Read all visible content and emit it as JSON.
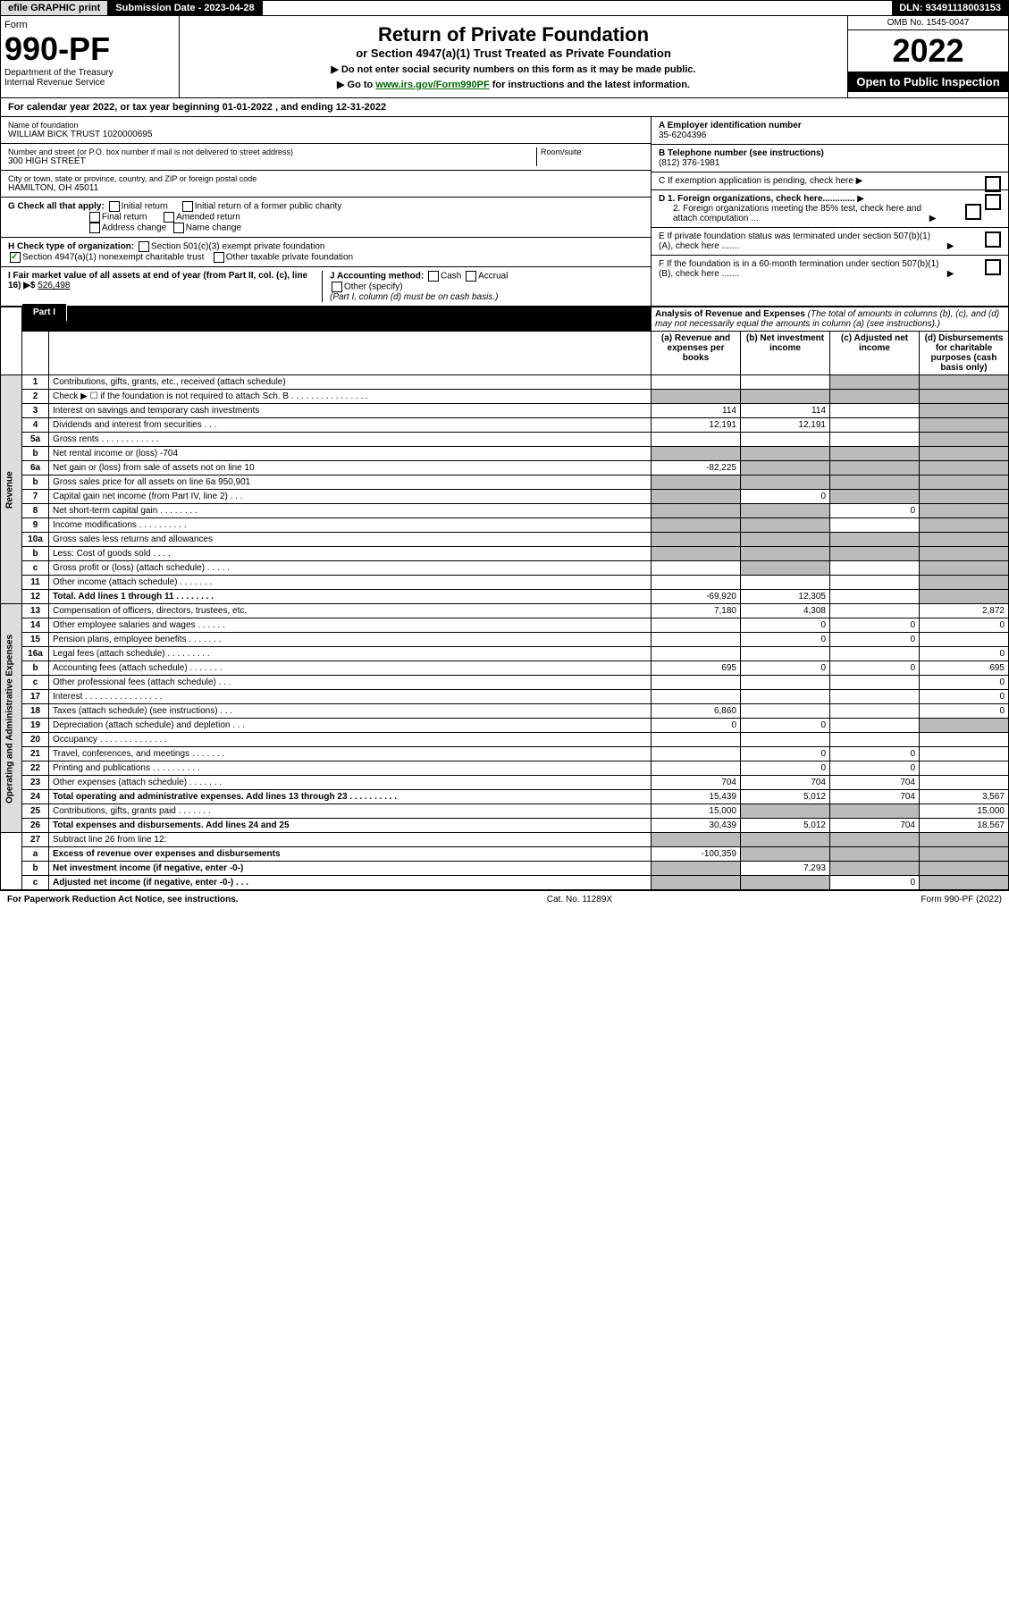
{
  "topbar": {
    "efile": "efile GRAPHIC print",
    "sub_date_label": "Submission Date - 2023-04-28",
    "dln": "DLN: 93491118003153"
  },
  "header": {
    "form_label": "Form",
    "form_no": "990-PF",
    "dept": "Department of the Treasury\nInternal Revenue Service",
    "title": "Return of Private Foundation",
    "subtitle": "or Section 4947(a)(1) Trust Treated as Private Foundation",
    "note1": "▶ Do not enter social security numbers on this form as it may be made public.",
    "note2_pre": "▶ Go to ",
    "note2_link": "www.irs.gov/Form990PF",
    "note2_post": " for instructions and the latest information.",
    "omb": "OMB No. 1545-0047",
    "tax_year": "2022",
    "open_pub": "Open to Public Inspection"
  },
  "cal_year": "For calendar year 2022, or tax year beginning 01-01-2022                                    , and ending 12-31-2022",
  "info": {
    "name_label": "Name of foundation",
    "name": "WILLIAM BICK TRUST 1020000695",
    "addr_label": "Number and street (or P.O. box number if mail is not delivered to street address)",
    "addr": "300 HIGH STREET",
    "room_label": "Room/suite",
    "city_label": "City or town, state or province, country, and ZIP or foreign postal code",
    "city": "HAMILTON, OH  45011",
    "ein_label": "A Employer identification number",
    "ein": "35-6204396",
    "phone_label": "B Telephone number (see instructions)",
    "phone": "(812) 376-1981",
    "c_label": "C If exemption application is pending, check here",
    "d1_label": "D 1. Foreign organizations, check here.............",
    "d2_label": "2. Foreign organizations meeting the 85% test, check here and attach computation ...",
    "e_label": "E  If private foundation status was terminated under section 507(b)(1)(A), check here .......",
    "f_label": "F  If the foundation is in a 60-month termination under section 507(b)(1)(B), check here .......",
    "g_label": "G Check all that apply:",
    "g_opts": [
      "Initial return",
      "Final return",
      "Address change",
      "Initial return of a former public charity",
      "Amended return",
      "Name change"
    ],
    "h_label": "H Check type of organization:",
    "h_opt1": "Section 501(c)(3) exempt private foundation",
    "h_opt2": "Section 4947(a)(1) nonexempt charitable trust",
    "h_opt3": "Other taxable private foundation",
    "i_label": "I Fair market value of all assets at end of year (from Part II, col. (c), line 16) ▶$",
    "i_val": "526,498",
    "j_label": "J Accounting method:",
    "j_opts": [
      "Cash",
      "Accrual"
    ],
    "j_other": "Other (specify)",
    "j_note": "(Part I, column (d) must be on cash basis.)"
  },
  "part1": {
    "label": "Part I",
    "title": "Analysis of Revenue and Expenses",
    "title_note": "(The total of amounts in columns (b), (c), and (d) may not necessarily equal the amounts in column (a) (see instructions).)",
    "cols": [
      "(a)   Revenue and expenses per books",
      "(b)   Net investment income",
      "(c)   Adjusted net income",
      "(d)   Disbursements for charitable purposes (cash basis only)"
    ],
    "sections": {
      "revenue": "Revenue",
      "expenses": "Operating and Administrative Expenses"
    },
    "rows": [
      {
        "n": "1",
        "d": "Contributions, gifts, grants, etc., received (attach schedule)",
        "a": "",
        "b": "",
        "c": "s",
        "ds": "s"
      },
      {
        "n": "2",
        "d": "Check ▶ ☐ if the foundation is not required to attach Sch. B     .  .  .  .  .  .  .  .  .  .  .  .  .  .  .  .",
        "a": "s",
        "b": "s",
        "c": "s",
        "ds": "s"
      },
      {
        "n": "3",
        "d": "Interest on savings and temporary cash investments",
        "a": "114",
        "b": "114",
        "c": "",
        "ds": "s"
      },
      {
        "n": "4",
        "d": "Dividends and interest from securities    .   .   .",
        "a": "12,191",
        "b": "12,191",
        "c": "",
        "ds": "s"
      },
      {
        "n": "5a",
        "d": "Gross rents    .   .   .   .   .   .   .   .   .   .   .   .",
        "a": "",
        "b": "",
        "c": "",
        "ds": "s"
      },
      {
        "n": "b",
        "d": "Net rental income or (loss)                                       -704",
        "a": "s",
        "b": "s",
        "c": "s",
        "ds": "s"
      },
      {
        "n": "6a",
        "d": "Net gain or (loss) from sale of assets not on line 10",
        "a": "-82,225",
        "b": "s",
        "c": "s",
        "ds": "s"
      },
      {
        "n": "b",
        "d": "Gross sales price for all assets on line 6a            950,901",
        "a": "s",
        "b": "s",
        "c": "s",
        "ds": "s"
      },
      {
        "n": "7",
        "d": "Capital gain net income (from Part IV, line 2)   .   .   .",
        "a": "s",
        "b": "0",
        "c": "s",
        "ds": "s"
      },
      {
        "n": "8",
        "d": "Net short-term capital gain   .   .   .   .   .   .   .   .",
        "a": "s",
        "b": "s",
        "c": "0",
        "ds": "s"
      },
      {
        "n": "9",
        "d": "Income modifications  .   .   .   .   .   .   .   .   .   .",
        "a": "s",
        "b": "s",
        "c": "",
        "ds": "s"
      },
      {
        "n": "10a",
        "d": "Gross sales less returns and allowances",
        "a": "s",
        "b": "s",
        "c": "s",
        "ds": "s"
      },
      {
        "n": "b",
        "d": "Less: Cost of goods sold    .   .   .   .",
        "a": "s",
        "b": "s",
        "c": "s",
        "ds": "s"
      },
      {
        "n": "c",
        "d": "Gross profit or (loss) (attach schedule)     .   .   .   .   .",
        "a": "",
        "b": "s",
        "c": "",
        "ds": "s"
      },
      {
        "n": "11",
        "d": "Other income (attach schedule)    .   .   .   .   .   .   .",
        "a": "",
        "b": "",
        "c": "",
        "ds": "s"
      },
      {
        "n": "12",
        "d": "Total. Add lines 1 through 11   .   .   .   .   .   .   .   .",
        "a": "-69,920",
        "b": "12,305",
        "c": "",
        "ds": "s",
        "bold": true
      },
      {
        "n": "13",
        "d": "Compensation of officers, directors, trustees, etc.",
        "a": "7,180",
        "b": "4,308",
        "c": "",
        "ds": "2,872",
        "sec": "exp"
      },
      {
        "n": "14",
        "d": "Other employee salaries and wages    .   .   .   .   .   .",
        "a": "",
        "b": "0",
        "c": "0",
        "ds": "0"
      },
      {
        "n": "15",
        "d": "Pension plans, employee benefits   .   .   .   .   .   .   .",
        "a": "",
        "b": "0",
        "c": "0",
        "ds": ""
      },
      {
        "n": "16a",
        "d": "Legal fees (attach schedule)  .   .   .   .   .   .   .   .   .",
        "a": "",
        "b": "",
        "c": "",
        "ds": "0"
      },
      {
        "n": "b",
        "d": "Accounting fees (attach schedule)  .   .   .   .   .   .   .",
        "a": "695",
        "b": "0",
        "c": "0",
        "ds": "695"
      },
      {
        "n": "c",
        "d": "Other professional fees (attach schedule)    .   .   .",
        "a": "",
        "b": "",
        "c": "",
        "ds": "0"
      },
      {
        "n": "17",
        "d": "Interest .   .   .   .   .   .   .   .   .   .   .   .   .   .   .   .",
        "a": "",
        "b": "",
        "c": "",
        "ds": "0"
      },
      {
        "n": "18",
        "d": "Taxes (attach schedule) (see instructions)    .   .   .",
        "a": "6,860",
        "b": "",
        "c": "",
        "ds": "0"
      },
      {
        "n": "19",
        "d": "Depreciation (attach schedule) and depletion    .   .   .",
        "a": "0",
        "b": "0",
        "c": "",
        "ds": "s"
      },
      {
        "n": "20",
        "d": "Occupancy  .   .   .   .   .   .   .   .   .   .   .   .   .   .",
        "a": "",
        "b": "",
        "c": "",
        "ds": ""
      },
      {
        "n": "21",
        "d": "Travel, conferences, and meetings  .   .   .   .   .   .   .",
        "a": "",
        "b": "0",
        "c": "0",
        "ds": ""
      },
      {
        "n": "22",
        "d": "Printing and publications  .   .   .   .   .   .   .   .   .   .",
        "a": "",
        "b": "0",
        "c": "0",
        "ds": ""
      },
      {
        "n": "23",
        "d": "Other expenses (attach schedule)  .   .   .   .   .   .   .",
        "a": "704",
        "b": "704",
        "c": "704",
        "ds": ""
      },
      {
        "n": "24",
        "d": "Total operating and administrative expenses. Add lines 13 through 23   .   .   .   .   .   .   .   .   .   .",
        "a": "15,439",
        "b": "5,012",
        "c": "704",
        "ds": "3,567",
        "bold": true
      },
      {
        "n": "25",
        "d": "Contributions, gifts, grants paid    .   .   .   .   .   .   .",
        "a": "15,000",
        "b": "s",
        "c": "s",
        "ds": "15,000"
      },
      {
        "n": "26",
        "d": "Total expenses and disbursements. Add lines 24 and 25",
        "a": "30,439",
        "b": "5,012",
        "c": "704",
        "ds": "18,567",
        "bold": true
      },
      {
        "n": "27",
        "d": "Subtract line 26 from line 12:",
        "a": "s",
        "b": "s",
        "c": "s",
        "ds": "s",
        "sec": "end"
      },
      {
        "n": "a",
        "d": "Excess of revenue over expenses and disbursements",
        "a": "-100,359",
        "b": "s",
        "c": "s",
        "ds": "s",
        "bold": true
      },
      {
        "n": "b",
        "d": "Net investment income (if negative, enter -0-)",
        "a": "s",
        "b": "7,293",
        "c": "s",
        "ds": "s",
        "bold": true
      },
      {
        "n": "c",
        "d": "Adjusted net income (if negative, enter -0-)   .   .   .",
        "a": "s",
        "b": "s",
        "c": "0",
        "ds": "s",
        "bold": true
      }
    ]
  },
  "footer": {
    "left": "For Paperwork Reduction Act Notice, see instructions.",
    "mid": "Cat. No. 11289X",
    "right": "Form 990-PF (2022)"
  }
}
